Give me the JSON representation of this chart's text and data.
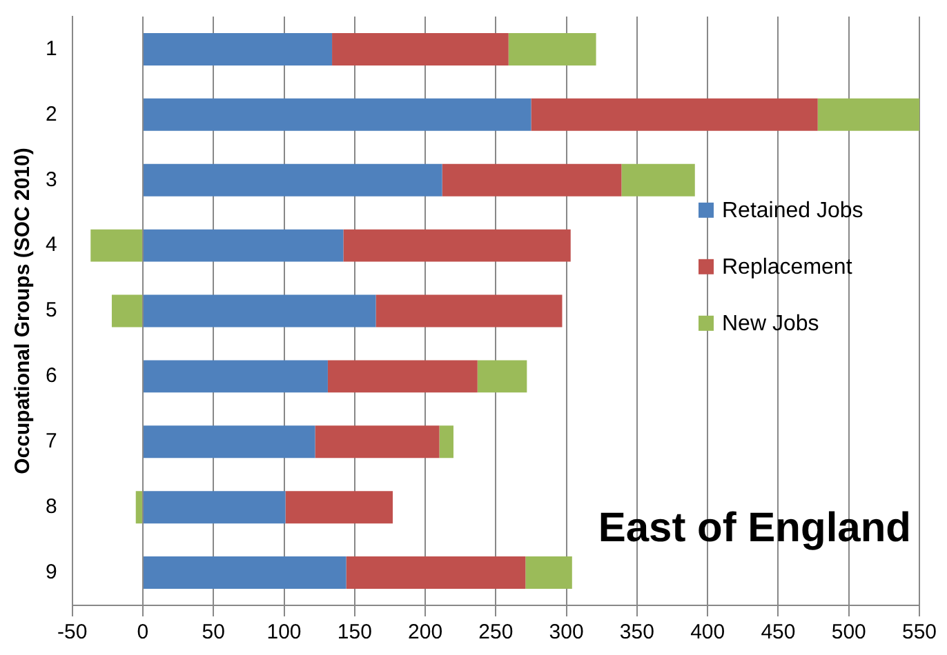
{
  "chart_data": {
    "type": "bar",
    "orientation": "horizontal",
    "stacked": true,
    "title": "East of England",
    "ylabel": "Occupational Groups (SOC 2010)",
    "categories": [
      "1",
      "2",
      "3",
      "4",
      "5",
      "6",
      "7",
      "8",
      "9"
    ],
    "series": [
      {
        "name": "Retained Jobs",
        "color": "#4f81bd",
        "values": [
          134,
          275,
          212,
          142,
          165,
          131,
          122,
          101,
          144
        ]
      },
      {
        "name": "Replacement",
        "color": "#c0504d",
        "values": [
          125,
          203,
          127,
          161,
          132,
          106,
          88,
          76,
          127
        ]
      },
      {
        "name": "New Jobs",
        "color": "#9bbb59",
        "values": [
          62,
          74,
          52,
          -37,
          -22,
          35,
          10,
          -5,
          33
        ]
      }
    ],
    "xlim": [
      -50,
      550
    ],
    "xticks": [
      -50,
      0,
      50,
      100,
      150,
      200,
      250,
      300,
      350,
      400,
      450,
      500,
      550
    ],
    "grid": "x",
    "legend": "right"
  }
}
